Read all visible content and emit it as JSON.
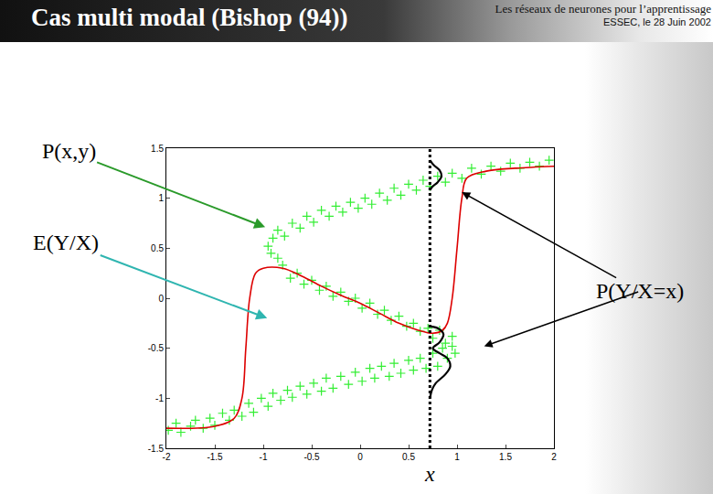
{
  "slide": {
    "title": "Cas multi modal (Bishop (94))",
    "header": [
      "Les réseaux de neurones pour l’apprentissage",
      "ESSEC, le 28 Juin 2002"
    ]
  },
  "chart_data": {
    "type": "scatter",
    "xlim": [
      -2,
      2
    ],
    "ylim": [
      -1.5,
      1.5
    ],
    "xticks": [
      -2,
      -1.5,
      -1,
      -0.5,
      0,
      0.5,
      1,
      1.5,
      2
    ],
    "yticks": [
      -1.5,
      -1,
      -0.5,
      0,
      0.5,
      1,
      1.5
    ],
    "grid": false,
    "conditional_x": 0.72,
    "x_label": "x",
    "series": [
      {
        "type": "scatter",
        "marker": "cross",
        "color": "#33ee33",
        "x": [
          -1.98,
          -1.9,
          -1.85,
          -1.75,
          -1.7,
          -1.62,
          -1.55,
          -1.5,
          -1.42,
          -1.35,
          -1.3,
          -1.22,
          -1.15,
          -1.1,
          -1.02,
          -0.95,
          -0.9,
          -0.82,
          -0.75,
          -0.7,
          -0.62,
          -0.55,
          -0.48,
          -0.4,
          -0.35,
          -0.28,
          -0.2,
          -0.12,
          -0.05,
          0.02,
          0.1,
          0.15,
          0.22,
          0.3,
          0.35,
          0.42,
          0.5,
          0.55,
          0.62,
          0.68,
          0.75,
          0.8,
          0.85,
          0.9,
          0.95,
          0.98,
          0.95,
          0.88,
          0.82,
          0.75,
          0.7,
          0.62,
          0.55,
          0.48,
          0.4,
          0.32,
          0.25,
          0.18,
          0.1,
          0.02,
          -0.05,
          -0.12,
          -0.2,
          -0.28,
          -0.35,
          -0.42,
          -0.5,
          -0.58,
          -0.65,
          -0.72,
          -0.8,
          -0.85,
          -0.92,
          -0.95,
          -0.9,
          -0.85,
          -0.78,
          -0.7,
          -0.62,
          -0.55,
          -0.48,
          -0.4,
          -0.32,
          -0.25,
          -0.18,
          -0.1,
          -0.02,
          0.05,
          0.12,
          0.2,
          0.28,
          0.35,
          0.42,
          0.5,
          0.58,
          0.65,
          0.72,
          0.8,
          0.88,
          0.95,
          1.05,
          1.15,
          1.25,
          1.35,
          1.45,
          1.55,
          1.65,
          1.75,
          1.85,
          1.95
        ],
        "values": [
          -1.32,
          -1.25,
          -1.34,
          -1.28,
          -1.22,
          -1.3,
          -1.2,
          -1.27,
          -1.15,
          -1.22,
          -1.12,
          -1.18,
          -1.05,
          -1.14,
          -1.0,
          -1.08,
          -0.95,
          -1.02,
          -0.92,
          -0.99,
          -0.88,
          -0.96,
          -0.85,
          -0.93,
          -0.8,
          -0.9,
          -0.78,
          -0.86,
          -0.74,
          -0.83,
          -0.7,
          -0.8,
          -0.68,
          -0.78,
          -0.65,
          -0.75,
          -0.62,
          -0.72,
          -0.6,
          -0.7,
          -0.55,
          -0.68,
          -0.5,
          -0.6,
          -0.48,
          -0.55,
          -0.38,
          -0.45,
          -0.32,
          -0.4,
          -0.3,
          -0.33,
          -0.25,
          -0.28,
          -0.18,
          -0.22,
          -0.12,
          -0.16,
          -0.05,
          -0.1,
          0.0,
          -0.03,
          0.06,
          0.02,
          0.12,
          0.08,
          0.18,
          0.14,
          0.25,
          0.2,
          0.33,
          0.4,
          0.45,
          0.52,
          0.6,
          0.68,
          0.62,
          0.75,
          0.7,
          0.82,
          0.76,
          0.88,
          0.82,
          0.92,
          0.86,
          0.96,
          0.9,
          1.0,
          0.94,
          1.05,
          0.98,
          1.1,
          1.03,
          1.14,
          1.08,
          1.18,
          1.12,
          1.22,
          1.16,
          1.25,
          1.2,
          1.3,
          1.24,
          1.32,
          1.27,
          1.35,
          1.3,
          1.36,
          1.32,
          1.38
        ]
      },
      {
        "type": "line",
        "color": "#dd0000",
        "line_style": "solid",
        "x": [
          -2,
          -1.5,
          -1.3,
          -1.22,
          -1.18,
          -1.14,
          -1.08,
          -1,
          -0.8,
          -0.6,
          -0.4,
          -0.2,
          0,
          0.2,
          0.4,
          0.6,
          0.75,
          0.85,
          0.9,
          0.95,
          1,
          1.05,
          1.1,
          1.3,
          1.6,
          2
        ],
        "values": [
          -1.3,
          -1.28,
          -1.2,
          -1,
          -0.5,
          0,
          0.25,
          0.3,
          0.3,
          0.22,
          0.12,
          0.03,
          -0.05,
          -0.15,
          -0.25,
          -0.32,
          -0.35,
          -0.32,
          -0.25,
          0,
          0.5,
          1,
          1.2,
          1.27,
          1.3,
          1.32
        ]
      },
      {
        "type": "line",
        "color": "#000000",
        "line_style": "solid",
        "x": [
          0.72,
          0.76,
          0.82,
          0.84,
          0.8,
          0.75,
          0.72
        ],
        "values": [
          1.38,
          1.33,
          1.28,
          1.22,
          1.16,
          1.12,
          1.08
        ]
      },
      {
        "type": "line",
        "color": "#000000",
        "line_style": "solid",
        "x": [
          0.72,
          0.8,
          0.86,
          0.82,
          0.75,
          0.82,
          0.9,
          0.93,
          0.88,
          0.78,
          0.74,
          0.72
        ],
        "values": [
          -0.28,
          -0.3,
          -0.36,
          -0.44,
          -0.5,
          -0.55,
          -0.6,
          -0.68,
          -0.76,
          -0.85,
          -0.92,
          -1.0
        ]
      }
    ],
    "annotations": [
      {
        "text": "P(x,y)",
        "color": "#2a9a2a"
      },
      {
        "text": "E(Y/X)",
        "color": "#2fb5b0"
      },
      {
        "text": "P(Y/X=x)",
        "color": "#000000"
      }
    ]
  }
}
